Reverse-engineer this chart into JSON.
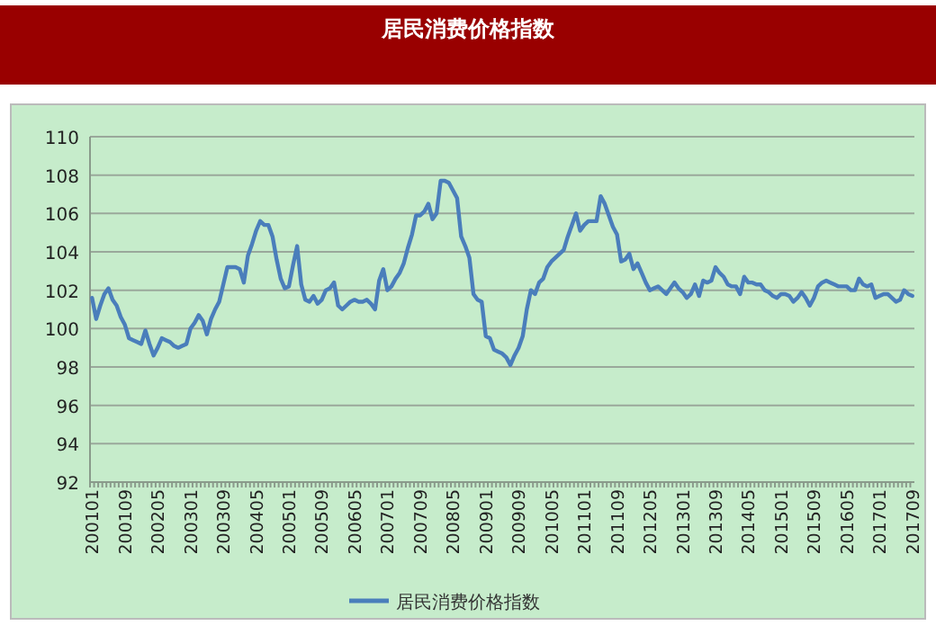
{
  "chart_data": {
    "type": "line",
    "title": "居民消费价格指数",
    "grid": "y",
    "legend": "bottom",
    "ylim": [
      92,
      110
    ],
    "yticks": [
      92,
      94,
      96,
      98,
      100,
      102,
      104,
      106,
      108,
      110
    ],
    "categories": [
      "200101",
      null,
      null,
      null,
      null,
      null,
      null,
      null,
      "200109",
      null,
      null,
      null,
      null,
      null,
      null,
      null,
      "200205",
      null,
      null,
      null,
      null,
      null,
      null,
      null,
      "200301",
      null,
      null,
      null,
      null,
      null,
      null,
      null,
      "200309",
      null,
      null,
      null,
      null,
      null,
      null,
      null,
      "200405",
      null,
      null,
      null,
      null,
      null,
      null,
      null,
      "200501",
      null,
      null,
      null,
      null,
      null,
      null,
      null,
      "200509",
      null,
      null,
      null,
      null,
      null,
      null,
      null,
      "200605",
      null,
      null,
      null,
      null,
      null,
      null,
      null,
      "200701",
      null,
      null,
      null,
      null,
      null,
      null,
      null,
      "200709",
      null,
      null,
      null,
      null,
      null,
      null,
      null,
      "200805",
      null,
      null,
      null,
      null,
      null,
      null,
      null,
      "200901",
      null,
      null,
      null,
      null,
      null,
      null,
      null,
      "200909",
      null,
      null,
      null,
      null,
      null,
      null,
      null,
      "201005",
      null,
      null,
      null,
      null,
      null,
      null,
      null,
      "201101",
      null,
      null,
      null,
      null,
      null,
      null,
      null,
      "201109",
      null,
      null,
      null,
      null,
      null,
      null,
      null,
      "201205",
      null,
      null,
      null,
      null,
      null,
      null,
      null,
      "201301",
      null,
      null,
      null,
      null,
      null,
      null,
      null,
      "201309",
      null,
      null,
      null,
      null,
      null,
      null,
      null,
      "201405",
      null,
      null,
      null,
      null,
      null,
      null,
      null,
      "201501",
      null,
      null,
      null,
      null,
      null,
      null,
      null,
      "201509",
      null,
      null,
      null,
      null,
      null,
      null,
      null,
      "201605",
      null,
      null,
      null,
      null,
      null,
      null,
      null,
      "201701",
      null,
      null,
      null,
      null,
      null,
      null,
      null,
      "201709"
    ],
    "series": [
      {
        "name": "居民消费价格指数",
        "color": "#4a7ebb",
        "values": [
          101.6,
          100.5,
          101.2,
          101.8,
          102.1,
          101.5,
          101.2,
          100.6,
          100.2,
          99.5,
          99.4,
          99.3,
          99.2,
          99.9,
          99.2,
          98.6,
          99.0,
          99.5,
          99.4,
          99.3,
          99.1,
          99.0,
          99.1,
          99.2,
          100.0,
          100.3,
          100.7,
          100.4,
          99.7,
          100.5,
          101.0,
          101.4,
          102.3,
          103.2,
          103.2,
          103.2,
          103.1,
          102.4,
          103.8,
          104.4,
          105.1,
          105.6,
          105.4,
          105.4,
          104.8,
          103.6,
          102.6,
          102.1,
          102.2,
          103.3,
          104.3,
          102.3,
          101.5,
          101.4,
          101.7,
          101.3,
          101.5,
          102.0,
          102.1,
          102.4,
          101.2,
          101.0,
          101.2,
          101.4,
          101.5,
          101.4,
          101.4,
          101.5,
          101.3,
          101.0,
          102.5,
          103.1,
          102.0,
          102.2,
          102.6,
          102.9,
          103.4,
          104.2,
          104.9,
          105.9,
          105.9,
          106.1,
          106.5,
          105.7,
          106.0,
          107.7,
          107.7,
          107.6,
          107.2,
          106.8,
          104.8,
          104.3,
          103.7,
          101.8,
          101.5,
          101.4,
          99.6,
          99.5,
          98.9,
          98.8,
          98.7,
          98.5,
          98.1,
          98.6,
          99.0,
          99.6,
          101.0,
          102.0,
          101.8,
          102.4,
          102.6,
          103.2,
          103.5,
          103.7,
          103.9,
          104.1,
          104.8,
          105.4,
          106.0,
          105.1,
          105.4,
          105.6,
          105.6,
          105.6,
          106.9,
          106.5,
          105.9,
          105.3,
          104.9,
          103.5,
          103.6,
          103.9,
          103.1,
          103.4,
          102.9,
          102.4,
          102.0,
          102.1,
          102.2,
          102.0,
          101.8,
          102.1,
          102.4,
          102.1,
          101.9,
          101.6,
          101.8,
          102.3,
          101.7,
          102.5,
          102.4,
          102.5,
          103.2,
          102.9,
          102.7,
          102.3,
          102.2,
          102.2,
          101.8,
          102.7,
          102.4,
          102.4,
          102.3,
          102.3,
          102.0,
          101.9,
          101.7,
          101.6,
          101.8,
          101.8,
          101.7,
          101.4,
          101.6,
          101.9,
          101.6,
          101.2,
          101.6,
          102.2,
          102.4,
          102.5,
          102.4,
          102.3,
          102.2,
          102.2,
          102.2,
          102.0,
          102.0,
          102.6,
          102.3,
          102.2,
          102.3,
          101.6,
          101.7,
          101.8,
          101.8,
          101.6,
          101.4,
          101.5,
          102.0,
          101.8,
          101.7
        ]
      }
    ]
  }
}
